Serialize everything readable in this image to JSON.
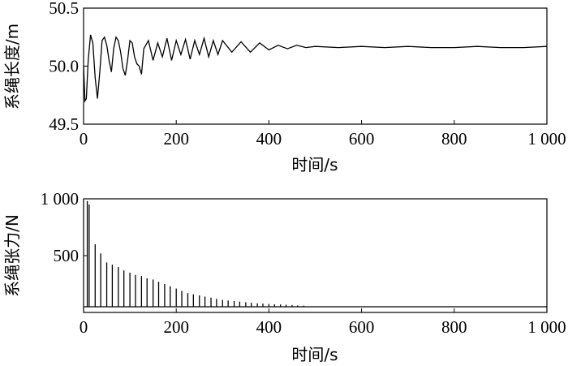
{
  "chart_data": [
    {
      "type": "line",
      "xlabel": "时间/s",
      "ylabel": "系绳长度/m",
      "xlim": [
        0,
        1000
      ],
      "ylim": [
        49.5,
        50.5
      ],
      "xticks": [
        0,
        200,
        400,
        600,
        800,
        1000
      ],
      "xtick_labels": [
        "0",
        "200",
        "400",
        "600",
        "800",
        "1 000"
      ],
      "yticks": [
        49.5,
        50.0,
        50.5
      ],
      "ytick_labels": [
        "49.5",
        "50.0",
        "50.5"
      ],
      "grid": false,
      "series": [
        {
          "x": [
            0,
            3,
            6,
            10,
            15,
            20,
            25,
            30,
            35,
            40,
            45,
            50,
            55,
            60,
            65,
            70,
            75,
            80,
            85,
            90,
            95,
            100,
            105,
            110,
            115,
            120,
            125,
            130,
            140,
            150,
            160,
            170,
            180,
            190,
            200,
            210,
            220,
            230,
            240,
            250,
            260,
            270,
            280,
            290,
            300,
            320,
            340,
            360,
            380,
            400,
            420,
            440,
            460,
            480,
            500,
            550,
            600,
            650,
            700,
            750,
            800,
            850,
            900,
            950,
            1000
          ],
          "values": [
            50.0,
            49.7,
            49.72,
            50.05,
            50.27,
            50.2,
            49.9,
            49.72,
            49.95,
            50.22,
            50.25,
            50.18,
            50.05,
            49.95,
            50.15,
            50.25,
            50.22,
            50.12,
            49.98,
            49.92,
            50.05,
            50.22,
            50.2,
            50.08,
            50.02,
            50.0,
            49.93,
            50.15,
            50.22,
            50.05,
            50.2,
            50.08,
            50.24,
            50.05,
            50.22,
            50.1,
            50.23,
            50.06,
            50.22,
            50.1,
            50.24,
            50.08,
            50.22,
            50.1,
            50.22,
            50.12,
            50.21,
            50.12,
            50.2,
            50.14,
            50.18,
            50.15,
            50.18,
            50.16,
            50.17,
            50.16,
            50.17,
            50.16,
            50.17,
            50.16,
            50.16,
            50.17,
            50.16,
            50.16,
            50.17
          ]
        }
      ]
    },
    {
      "type": "line",
      "xlabel": "时间/s",
      "ylabel": "系绳张力/N",
      "xlim": [
        0,
        1000
      ],
      "ylim": [
        0,
        1000
      ],
      "xticks": [
        0,
        200,
        400,
        600,
        800,
        1000
      ],
      "xtick_labels": [
        "0",
        "200",
        "400",
        "600",
        "800",
        "1 000"
      ],
      "yticks": [
        500,
        1000
      ],
      "ytick_labels": [
        "500",
        "1 000"
      ],
      "grid": false,
      "baseline": 50,
      "series": [
        {
          "spike_x": [
            8,
            12,
            25,
            37,
            50,
            62,
            75,
            87,
            100,
            112,
            125,
            137,
            150,
            162,
            175,
            187,
            200,
            212,
            225,
            237,
            250,
            262,
            275,
            287,
            300,
            312,
            325,
            337,
            350,
            362,
            375,
            387,
            400,
            412,
            425,
            437,
            450,
            462,
            475
          ],
          "spike_values": [
            980,
            950,
            600,
            520,
            440,
            420,
            400,
            370,
            350,
            330,
            320,
            300,
            290,
            270,
            250,
            230,
            210,
            190,
            170,
            160,
            150,
            140,
            130,
            120,
            110,
            105,
            100,
            95,
            90,
            85,
            80,
            78,
            75,
            72,
            70,
            68,
            65,
            62,
            60
          ]
        }
      ]
    }
  ]
}
